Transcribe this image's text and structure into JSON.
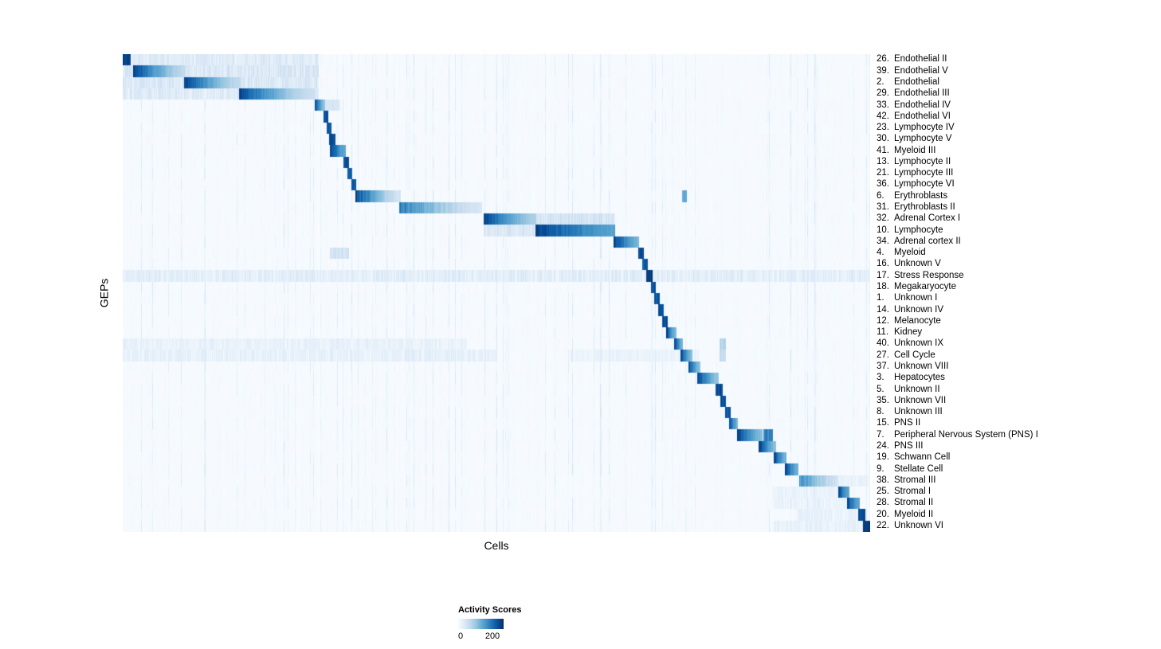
{
  "chart_data": {
    "type": "heatmap",
    "xlabel": "Cells",
    "ylabel": "GEPs",
    "value_scale_max": 200,
    "colorbar": {
      "title": "Activity Scores",
      "min": 0,
      "max": 200,
      "min_label": "0",
      "max_label": "200",
      "gradient": [
        "#f7fbff",
        "#deebf7",
        "#c6dbef",
        "#9ecae1",
        "#6baed6",
        "#4292c6",
        "#2171b5",
        "#08519c",
        "#08306b"
      ]
    },
    "noise": {
      "streak_probability_left": 0.07,
      "streak_probability_right": 0.11,
      "streak_min": 12,
      "streak_span": 26,
      "base_max": 5,
      "seed": 1234
    },
    "rows": [
      {
        "num": "26.",
        "name": "Endothelial II",
        "blocks": [
          {
            "s": 0.0,
            "e": 0.01,
            "v": 200
          },
          {
            "s": 0.01,
            "e": 0.262,
            "v": 38,
            "tex": 0.75
          }
        ]
      },
      {
        "num": "39.",
        "name": "Endothelial V",
        "blocks": [
          {
            "s": 0.0,
            "e": 0.262,
            "v": 44,
            "tex": 0.75
          },
          {
            "s": 0.014,
            "e": 0.084,
            "v": 200,
            "fade": true,
            "ve": 55
          }
        ]
      },
      {
        "num": "2.",
        "name": "Endothelial",
        "blocks": [
          {
            "s": 0.0,
            "e": 0.262,
            "v": 44,
            "tex": 0.75
          },
          {
            "s": 0.083,
            "e": 0.157,
            "v": 200,
            "fade": true,
            "ve": 55
          }
        ]
      },
      {
        "num": "29.",
        "name": "Endothelial III",
        "blocks": [
          {
            "s": 0.0,
            "e": 0.262,
            "v": 36,
            "tex": 0.75
          },
          {
            "s": 0.156,
            "e": 0.257,
            "v": 195,
            "fade": true,
            "ve": 45
          }
        ]
      },
      {
        "num": "33.",
        "name": "Endothelial IV",
        "blocks": [
          {
            "s": 0.257,
            "e": 0.27,
            "v": 200,
            "fade": true,
            "ve": 80
          },
          {
            "s": 0.27,
            "e": 0.29,
            "v": 40,
            "tex": 0.5
          }
        ]
      },
      {
        "num": "42.",
        "name": "Endothelial VI",
        "blocks": [
          {
            "s": 0.269,
            "e": 0.275,
            "v": 185
          }
        ]
      },
      {
        "num": "23.",
        "name": "Lymphocyte IV",
        "blocks": [
          {
            "s": 0.273,
            "e": 0.279,
            "v": 180
          }
        ]
      },
      {
        "num": "30.",
        "name": "Lymphocyte V",
        "blocks": [
          {
            "s": 0.277,
            "e": 0.284,
            "v": 190
          }
        ]
      },
      {
        "num": "41.",
        "name": "Myeloid III",
        "blocks": [
          {
            "s": 0.278,
            "e": 0.298,
            "v": 200,
            "fade": true,
            "ve": 110
          }
        ]
      },
      {
        "num": "13.",
        "name": "Lymphocyte II",
        "blocks": [
          {
            "s": 0.296,
            "e": 0.302,
            "v": 185
          }
        ]
      },
      {
        "num": "21.",
        "name": "Lymphocyte III",
        "blocks": [
          {
            "s": 0.301,
            "e": 0.307,
            "v": 180
          }
        ]
      },
      {
        "num": "36.",
        "name": "Lymphocyte VI",
        "blocks": [
          {
            "s": 0.306,
            "e": 0.312,
            "v": 180
          }
        ]
      },
      {
        "num": "6.",
        "name": "Erythroblasts",
        "blocks": [
          {
            "s": 0.312,
            "e": 0.372,
            "v": 200,
            "fade": true,
            "ve": 40,
            "tex": 0.2
          },
          {
            "s": 0.749,
            "e": 0.754,
            "v": 110
          }
        ]
      },
      {
        "num": "31.",
        "name": "Erythroblasts II",
        "blocks": [
          {
            "s": 0.371,
            "e": 0.48,
            "v": 165,
            "fade": true,
            "ve": 35,
            "tex": 0.25
          }
        ]
      },
      {
        "num": "32.",
        "name": "Adrenal Cortex I",
        "blocks": [
          {
            "s": 0.484,
            "e": 0.553,
            "v": 200,
            "fade": true,
            "ve": 70
          },
          {
            "s": 0.553,
            "e": 0.658,
            "v": 48,
            "tex": 0.6
          }
        ]
      },
      {
        "num": "10.",
        "name": "Lymphocyte",
        "blocks": [
          {
            "s": 0.484,
            "e": 0.553,
            "v": 42,
            "tex": 0.6
          },
          {
            "s": 0.553,
            "e": 0.658,
            "v": 200,
            "fade": true,
            "ve": 120
          }
        ]
      },
      {
        "num": "34.",
        "name": "Adrenal cortex II",
        "blocks": [
          {
            "s": 0.657,
            "e": 0.69,
            "v": 200,
            "fade": true,
            "ve": 100
          }
        ]
      },
      {
        "num": "4.",
        "name": "Myeloid",
        "blocks": [
          {
            "s": 0.69,
            "e": 0.697,
            "v": 190
          },
          {
            "s": 0.278,
            "e": 0.302,
            "v": 50,
            "tex": 0.5
          }
        ]
      },
      {
        "num": "16.",
        "name": "Unknown V",
        "blocks": [
          {
            "s": 0.696,
            "e": 0.702,
            "v": 180
          }
        ]
      },
      {
        "num": "17.",
        "name": "Stress Response",
        "blocks": [
          {
            "s": 0.0,
            "e": 1.0,
            "v": 32,
            "tex": 0.8
          },
          {
            "s": 0.701,
            "e": 0.708,
            "v": 200
          }
        ]
      },
      {
        "num": "18.",
        "name": "Megakaryocyte",
        "blocks": [
          {
            "s": 0.707,
            "e": 0.713,
            "v": 185
          }
        ]
      },
      {
        "num": "1.",
        "name": "Unknown I",
        "blocks": [
          {
            "s": 0.712,
            "e": 0.718,
            "v": 180
          }
        ]
      },
      {
        "num": "14.",
        "name": "Unknown IV",
        "blocks": [
          {
            "s": 0.717,
            "e": 0.723,
            "v": 180
          }
        ]
      },
      {
        "num": "12.",
        "name": "Melanocyte",
        "blocks": [
          {
            "s": 0.722,
            "e": 0.729,
            "v": 190
          }
        ]
      },
      {
        "num": "11.",
        "name": "Kidney",
        "blocks": [
          {
            "s": 0.728,
            "e": 0.74,
            "v": 200,
            "fade": true,
            "ve": 90
          }
        ]
      },
      {
        "num": "40.",
        "name": "Unknown IX",
        "blocks": [
          {
            "s": 0.0,
            "e": 0.46,
            "v": 22,
            "tex": 0.8
          },
          {
            "s": 0.738,
            "e": 0.749,
            "v": 200,
            "fade": true,
            "ve": 100
          },
          {
            "s": 0.799,
            "e": 0.807,
            "v": 70,
            "tex": 0.3
          }
        ]
      },
      {
        "num": "27.",
        "name": "Cell Cycle",
        "blocks": [
          {
            "s": 0.0,
            "e": 0.5,
            "v": 26,
            "tex": 0.8
          },
          {
            "s": 0.6,
            "e": 0.77,
            "v": 20,
            "tex": 0.8
          },
          {
            "s": 0.747,
            "e": 0.762,
            "v": 200,
            "fade": true,
            "ve": 90
          },
          {
            "s": 0.799,
            "e": 0.807,
            "v": 60,
            "tex": 0.3
          }
        ]
      },
      {
        "num": "37.",
        "name": "Unknown VIII",
        "blocks": [
          {
            "s": 0.757,
            "e": 0.772,
            "v": 190,
            "fade": true,
            "ve": 90
          }
        ]
      },
      {
        "num": "3.",
        "name": "Hepatocytes",
        "blocks": [
          {
            "s": 0.769,
            "e": 0.797,
            "v": 200,
            "fade": true,
            "ve": 80
          }
        ]
      },
      {
        "num": "5.",
        "name": "Unknown II",
        "blocks": [
          {
            "s": 0.794,
            "e": 0.802,
            "v": 190
          }
        ]
      },
      {
        "num": "35.",
        "name": "Unknown VII",
        "blocks": [
          {
            "s": 0.8,
            "e": 0.807,
            "v": 185
          }
        ]
      },
      {
        "num": "8.",
        "name": "Unknown III",
        "blocks": [
          {
            "s": 0.806,
            "e": 0.813,
            "v": 180
          }
        ]
      },
      {
        "num": "15.",
        "name": "PNS II",
        "blocks": [
          {
            "s": 0.812,
            "e": 0.823,
            "v": 190,
            "fade": true,
            "ve": 100
          }
        ]
      },
      {
        "num": "7.",
        "name": "Peripheral Nervous System (PNS) I",
        "blocks": [
          {
            "s": 0.822,
            "e": 0.856,
            "v": 200,
            "fade": true,
            "ve": 90
          },
          {
            "s": 0.858,
            "e": 0.869,
            "v": 150,
            "tex": 0.2
          }
        ]
      },
      {
        "num": "24.",
        "name": "PNS III",
        "blocks": [
          {
            "s": 0.851,
            "e": 0.874,
            "v": 200,
            "fade": true,
            "ve": 90
          }
        ]
      },
      {
        "num": "19.",
        "name": "Schwann Cell",
        "blocks": [
          {
            "s": 0.872,
            "e": 0.888,
            "v": 200,
            "fade": true,
            "ve": 100
          }
        ]
      },
      {
        "num": "9.",
        "name": "Stellate Cell",
        "blocks": [
          {
            "s": 0.886,
            "e": 0.903,
            "v": 200,
            "fade": true,
            "ve": 100
          }
        ]
      },
      {
        "num": "38.",
        "name": "Stromal III",
        "blocks": [
          {
            "s": 0.906,
            "e": 0.957,
            "v": 150,
            "fade": true,
            "ve": 45,
            "tex": 0.35
          },
          {
            "s": 0.958,
            "e": 1.0,
            "v": 25,
            "tex": 0.8
          }
        ]
      },
      {
        "num": "25.",
        "name": "Stromal I",
        "blocks": [
          {
            "s": 0.87,
            "e": 0.957,
            "v": 20,
            "tex": 0.8
          },
          {
            "s": 0.958,
            "e": 0.972,
            "v": 200,
            "fade": true,
            "ve": 110
          }
        ]
      },
      {
        "num": "28.",
        "name": "Stromal II",
        "blocks": [
          {
            "s": 0.87,
            "e": 0.968,
            "v": 20,
            "tex": 0.8
          },
          {
            "s": 0.97,
            "e": 0.986,
            "v": 195,
            "fade": true,
            "ve": 110
          }
        ]
      },
      {
        "num": "20.",
        "name": "Myeloid II",
        "blocks": [
          {
            "s": 0.9,
            "e": 0.984,
            "v": 22,
            "tex": 0.8
          },
          {
            "s": 0.985,
            "e": 0.993,
            "v": 190
          }
        ]
      },
      {
        "num": "22.",
        "name": "Unknown VI",
        "blocks": [
          {
            "s": 0.87,
            "e": 0.99,
            "v": 24,
            "tex": 0.8
          },
          {
            "s": 0.991,
            "e": 1.0,
            "v": 200
          }
        ]
      }
    ]
  }
}
